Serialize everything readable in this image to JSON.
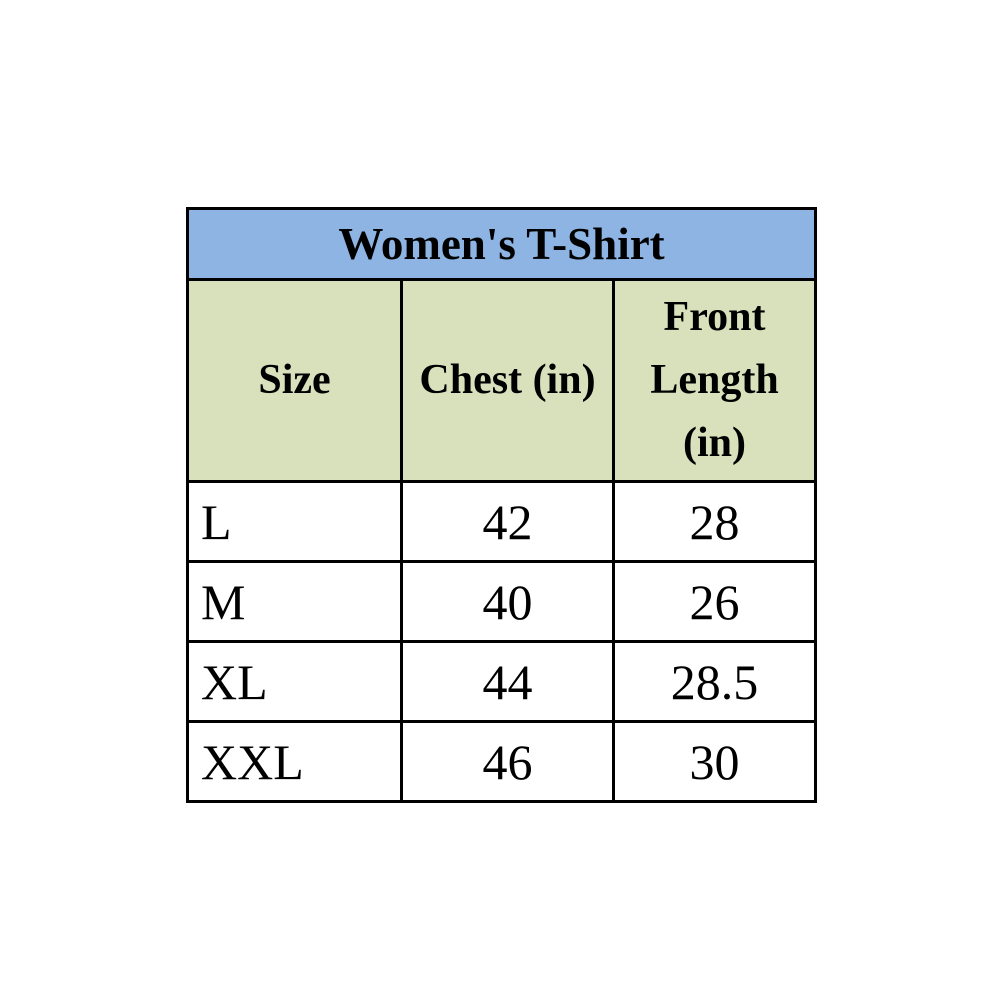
{
  "chart_data": {
    "type": "table",
    "title": "Women's T-Shirt",
    "columns": [
      "Size",
      "Chest (in)",
      "Front Length (in)"
    ],
    "rows": [
      [
        "L",
        "42",
        "28"
      ],
      [
        "M",
        "40",
        "26"
      ],
      [
        "XL",
        "44",
        "28.5"
      ],
      [
        "XXL",
        "46",
        "30"
      ]
    ]
  },
  "colors": {
    "title_bg": "#8DB4E2",
    "header_bg": "#D8E1BC",
    "row_bg": "#FFFFFF",
    "border": "#000000",
    "text": "#000000"
  }
}
